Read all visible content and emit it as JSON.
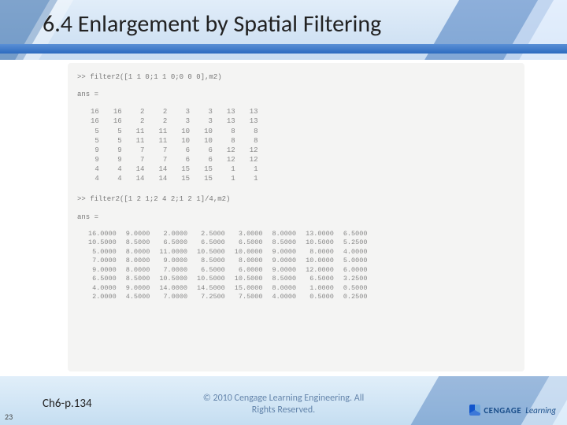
{
  "title": "6.4 Enlargement by Spatial Filtering",
  "code": {
    "cmd1": ">> filter2([1 1 0;1 1 0;0 0 0],m2)",
    "ans_label": "ans =",
    "matrix1": {
      "rows": [
        [
          16,
          16,
          2,
          2,
          3,
          3,
          13,
          13
        ],
        [
          16,
          16,
          2,
          2,
          3,
          3,
          13,
          13
        ],
        [
          5,
          5,
          11,
          11,
          10,
          10,
          8,
          8
        ],
        [
          5,
          5,
          11,
          11,
          10,
          10,
          8,
          8
        ],
        [
          9,
          9,
          7,
          7,
          6,
          6,
          12,
          12
        ],
        [
          9,
          9,
          7,
          7,
          6,
          6,
          12,
          12
        ],
        [
          4,
          4,
          14,
          14,
          15,
          15,
          1,
          1
        ],
        [
          4,
          4,
          14,
          14,
          15,
          15,
          1,
          1
        ]
      ]
    },
    "cmd2": ">> filter2([1 2 1;2 4 2;1 2 1]/4,m2)",
    "matrix2": {
      "rows": [
        [
          "16.0000",
          "9.0000",
          "2.0000",
          "2.5000",
          "3.0000",
          "8.0000",
          "13.0000",
          "6.5000"
        ],
        [
          "10.5000",
          "8.5000",
          "6.5000",
          "6.5000",
          "6.5000",
          "8.5000",
          "10.5000",
          "5.2500"
        ],
        [
          "5.0000",
          "8.0000",
          "11.0000",
          "10.5000",
          "10.0000",
          "9.0000",
          "8.0000",
          "4.0000"
        ],
        [
          "7.0000",
          "8.0000",
          "9.0000",
          "8.5000",
          "8.0000",
          "9.0000",
          "10.0000",
          "5.0000"
        ],
        [
          "9.0000",
          "8.0000",
          "7.0000",
          "6.5000",
          "6.0000",
          "9.0000",
          "12.0000",
          "6.0000"
        ],
        [
          "6.5000",
          "8.5000",
          "10.5000",
          "10.5000",
          "10.5000",
          "8.5000",
          "6.5000",
          "3.2500"
        ],
        [
          "4.0000",
          "9.0000",
          "14.0000",
          "14.5000",
          "15.0000",
          "8.0000",
          "1.0000",
          "0.5000"
        ],
        [
          "2.0000",
          "4.5000",
          "7.0000",
          "7.2500",
          "7.5000",
          "4.0000",
          "0.5000",
          "0.2500"
        ]
      ]
    }
  },
  "footer": {
    "chapter": "Ch6-p.134",
    "copyright_line1": "© 2010 Cengage Learning Engineering. All",
    "copyright_line2": "Rights Reserved.",
    "logo_brand": "CENGAGE",
    "logo_sub": "Learning"
  },
  "slide_number": "23"
}
